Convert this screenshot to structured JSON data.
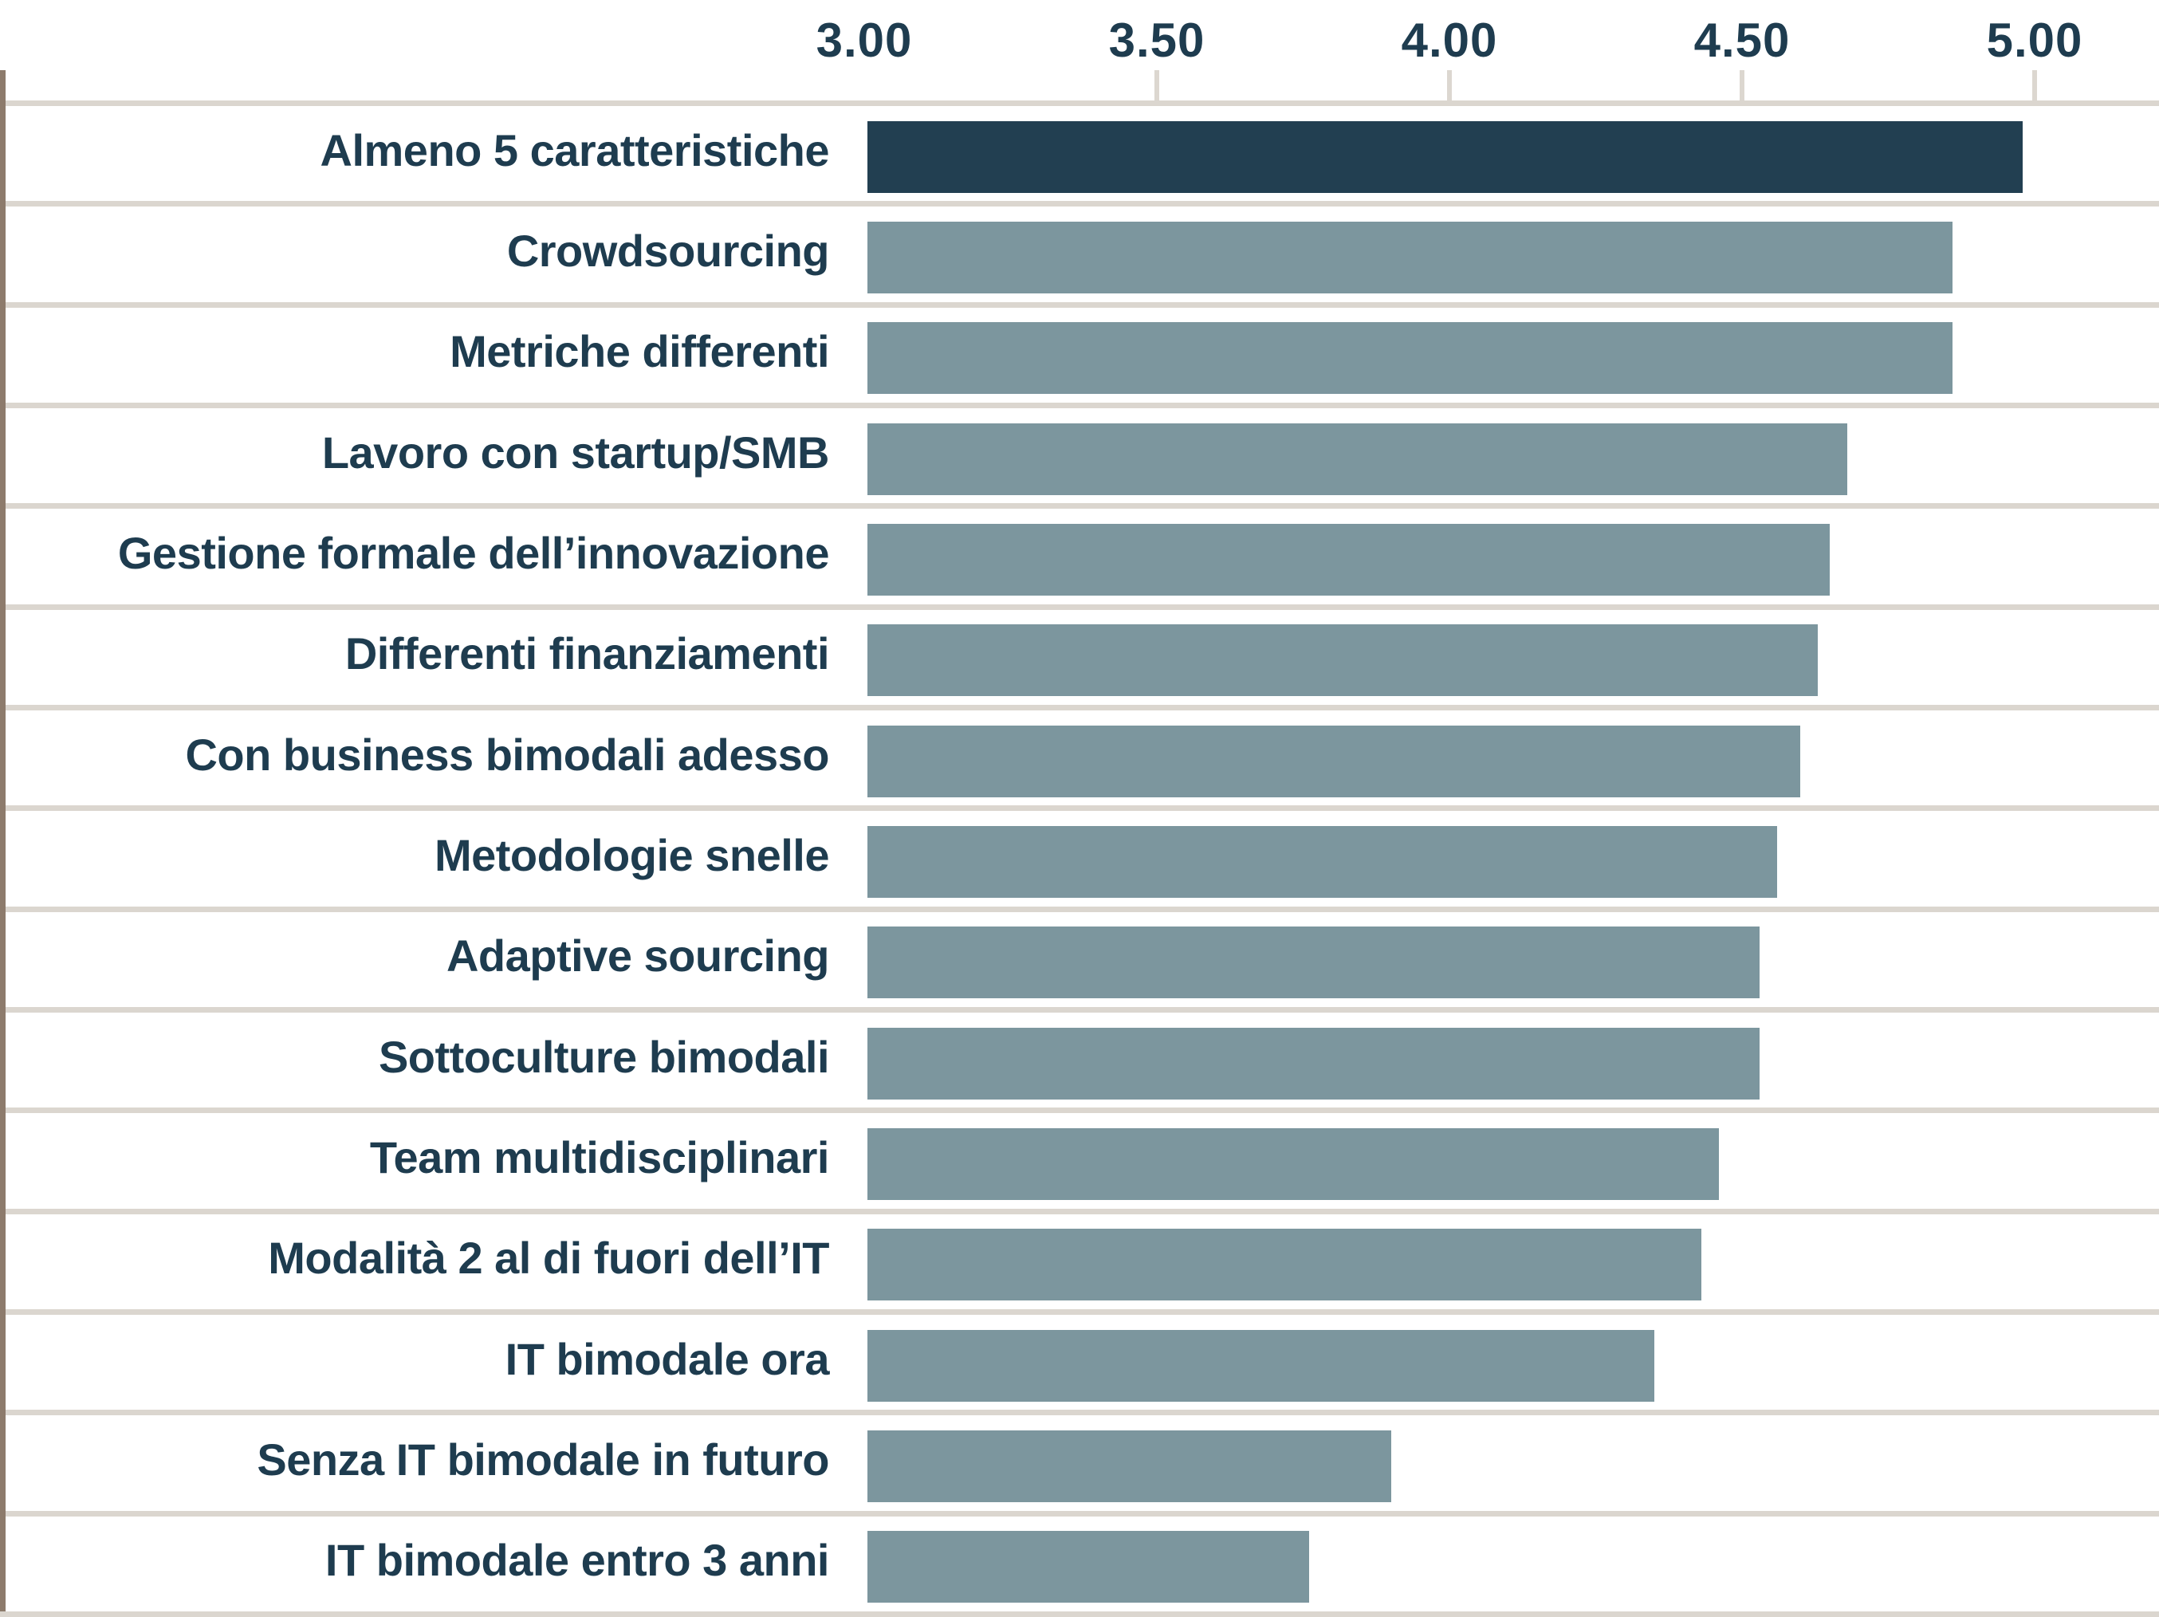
{
  "chart_data": {
    "type": "bar",
    "orientation": "horizontal",
    "title": "",
    "categories": [
      "Almeno 5 caratteristiche",
      "Crowdsourcing",
      "Metriche differenti",
      "Lavoro con startup/SMB",
      "Gestione formale dell’innovazione",
      "Differenti finanziamenti",
      "Con business bimodali adesso",
      "Metodologie snelle",
      "Adaptive sourcing",
      "Sottoculture bimodali",
      "Team multidisciplinari",
      "Modalità 2 al di fuori dell’IT",
      "IT bimodale ora",
      "Senza IT bimodale in futuro",
      "IT bimodale entro 3 anni"
    ],
    "values": [
      4.98,
      4.86,
      4.86,
      4.68,
      4.65,
      4.63,
      4.6,
      4.56,
      4.53,
      4.53,
      4.46,
      4.43,
      4.35,
      3.9,
      3.76
    ],
    "value_axis": {
      "position": "top",
      "ticks": [
        3.0,
        3.5,
        4.0,
        4.5,
        5.0
      ],
      "tick_labels": [
        "3.00",
        "3.50",
        "4.00",
        "4.50",
        "5.00"
      ],
      "range_shown": [
        3.0,
        5.21
      ],
      "baseline_value": 3.0
    },
    "grid": {
      "row_separators": true,
      "vertical_gridlines": false
    },
    "legend": null,
    "highlighted_category_index": 0
  },
  "colors": {
    "bar_default": "#7c969e",
    "bar_highlight": "#223f51",
    "label_text": "#1e3c4f",
    "row_separator": "#dbd6cf",
    "axis_baseline": "#8d7b6c",
    "tick_mark": "#dcd7d0",
    "background": "#ffffff"
  }
}
